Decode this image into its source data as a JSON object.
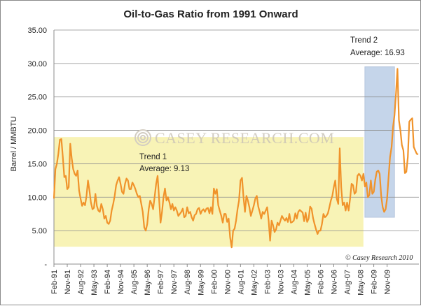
{
  "chart_data": {
    "type": "line",
    "title": "Oil-to-Gas Ratio from 1991 Onward",
    "xlabel": "",
    "ylabel": "Barrel / MMBTU",
    "ylim": [
      0,
      35
    ],
    "y_ticks": [
      "-",
      "5.00",
      "10.00",
      "15.00",
      "20.00",
      "25.00",
      "30.00",
      "35.00"
    ],
    "x_ticks": [
      "Feb-91",
      "Nov-91",
      "Aug-92",
      "May-93",
      "Feb-94",
      "Nov-94",
      "Aug-95",
      "May-96",
      "Feb-97",
      "Nov-97",
      "Aug-98",
      "May-99",
      "Feb-00",
      "Nov-00",
      "Aug-01",
      "May-02",
      "Feb-03",
      "Nov-03",
      "Aug-04",
      "May-05",
      "Feb-06",
      "Nov-06",
      "Aug-07",
      "May-08",
      "Feb-09",
      "Nov-09"
    ],
    "grid": true,
    "legend": "none",
    "line_color": "#f0932b",
    "series": [
      {
        "values": [
          9.8,
          14.2,
          15.0,
          16.5,
          18.6,
          18.7,
          16.0,
          13.0,
          13.2,
          11.2,
          11.5,
          18.0,
          15.8,
          14.2,
          13.5,
          13.2,
          14.0,
          11.0,
          9.8,
          8.7,
          9.2,
          8.8,
          10.2,
          12.5,
          11.0,
          9.2,
          8.2,
          8.4,
          10.5,
          8.7,
          8.0,
          7.8,
          9.0,
          8.2,
          6.8,
          7.2,
          6.2,
          6.0,
          6.5,
          8.0,
          9.0,
          10.2,
          11.8,
          12.5,
          13.0,
          12.0,
          10.8,
          10.5,
          12.0,
          12.8,
          12.5,
          11.2,
          11.2,
          12.2,
          11.8,
          11.2,
          10.5,
          10.0,
          10.2,
          9.0,
          7.8,
          5.5,
          5.0,
          6.0,
          8.2,
          9.5,
          9.0,
          8.2,
          10.0,
          12.0,
          13.2,
          9.8,
          6.2,
          7.8,
          10.0,
          11.3,
          9.5,
          10.0,
          9.2,
          8.2,
          9.0,
          8.0,
          8.5,
          8.0,
          7.2,
          7.5,
          7.8,
          8.3,
          7.0,
          7.2,
          8.5,
          7.6,
          7.8,
          7.0,
          6.5,
          7.3,
          7.5,
          8.2,
          8.4,
          7.5,
          8.0,
          8.2,
          7.8,
          8.3,
          8.4,
          7.6,
          8.5,
          7.5,
          11.3,
          10.5,
          11.2,
          8.8,
          8.0,
          7.2,
          6.2,
          7.5,
          7.5,
          6.3,
          6.8,
          4.0,
          2.5,
          5.0,
          5.3,
          6.5,
          8.2,
          9.5,
          12.5,
          12.9,
          10.0,
          7.8,
          10.2,
          9.5,
          8.5,
          7.2,
          8.0,
          8.8,
          9.8,
          10.2,
          8.6,
          7.8,
          6.8,
          7.8,
          7.5,
          8.0,
          8.5,
          6.5,
          3.5,
          6.5,
          5.8,
          4.8,
          5.2,
          6.2,
          5.8,
          6.5,
          7.2,
          6.8,
          6.5,
          6.9,
          6.3,
          7.5,
          6.2,
          6.3,
          6.5,
          7.6,
          6.8,
          7.8,
          8.1,
          7.9,
          7.7,
          6.4,
          7.7,
          6.3,
          6.8,
          8.6,
          8.3,
          6.9,
          6.0,
          5.2,
          4.5,
          5.0,
          5.0,
          6.0,
          7.5,
          7.0,
          7.2,
          7.6,
          8.5,
          9.5,
          10.2,
          11.5,
          12.5,
          9.8,
          9.0,
          17.3,
          11.5,
          8.8,
          9.2,
          8.0,
          9.2,
          8.0,
          9.8,
          12.0,
          11.8,
          10.5,
          10.8,
          13.2,
          13.5,
          13.2,
          12.5,
          13.5,
          11.6,
          12.2,
          10.0,
          10.3,
          12.5,
          10.5,
          10.8,
          12.6,
          13.8,
          14.0,
          13.5,
          10.2,
          8.5,
          7.8,
          8.2,
          9.8,
          13.0,
          16.0,
          17.5,
          20.5,
          22.3,
          25.5,
          29.2,
          21.5,
          20.0,
          17.8,
          17.0,
          13.6,
          13.8,
          16.0,
          21.3,
          21.6,
          21.8,
          17.5,
          17.0,
          16.5,
          16.4
        ]
      }
    ],
    "regions": [
      {
        "label": "Trend 1",
        "average_label": "Average: 9.13",
        "y_range": [
          2.6,
          19.0
        ],
        "x_range": [
          "Feb-91",
          "Jul-08"
        ],
        "color": "#f8f3b6"
      },
      {
        "label": "Trend 2",
        "average_label": "Average: 16.93",
        "y_range": [
          7.0,
          29.5
        ],
        "x_range": [
          "Aug-08",
          "Apr-10"
        ],
        "color": "#c5d5ea"
      }
    ],
    "annotations": [
      "© Casey Research 2010"
    ],
    "watermark": "CASEY RESEARCH.COM"
  }
}
